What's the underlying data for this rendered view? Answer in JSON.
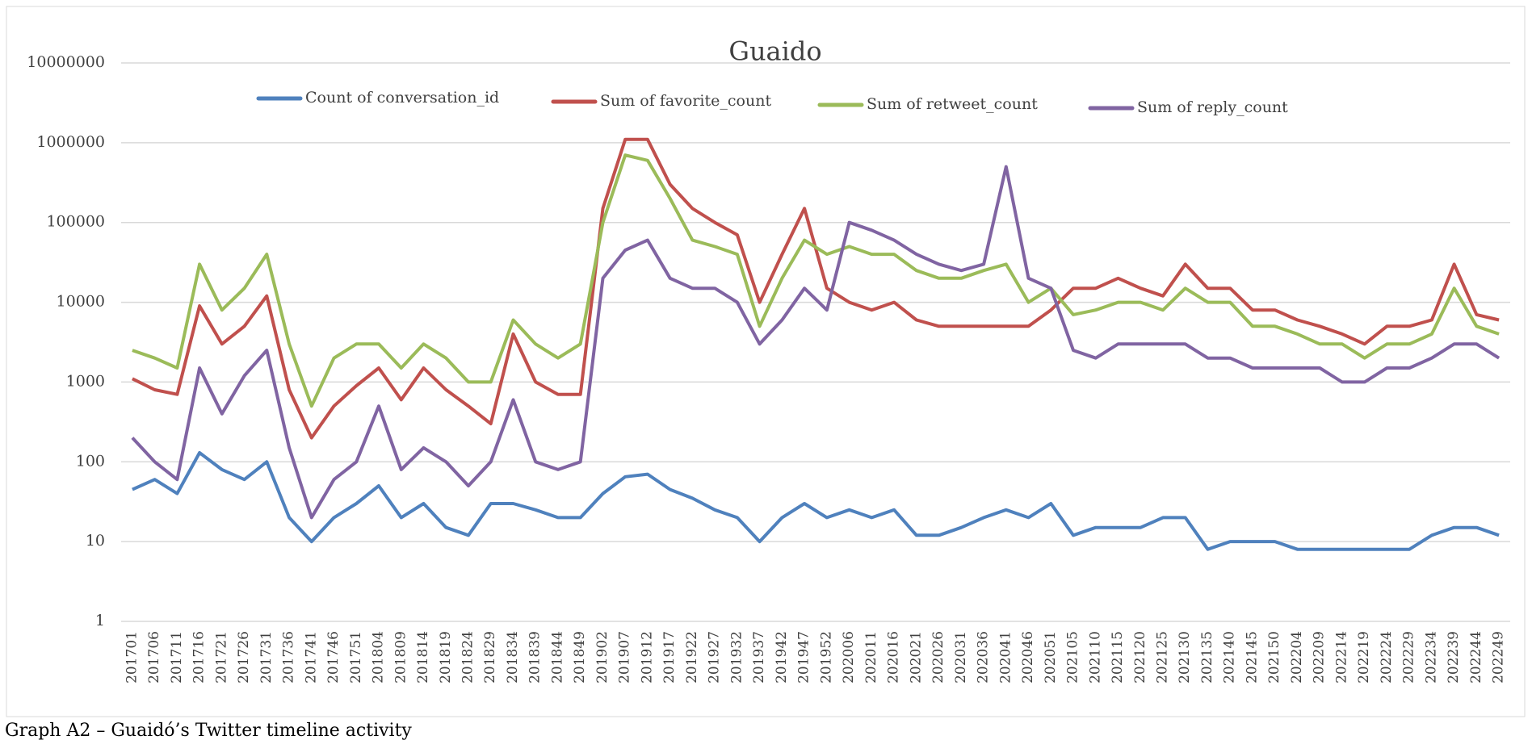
{
  "chart_data": {
    "type": "line",
    "title": "Guaido",
    "caption": "Graph A2 – Guaidó’s Twitter timeline activity",
    "log_scale": true,
    "grid": true,
    "legend": "top",
    "categories": [
      "201701",
      "201706",
      "201711",
      "201716",
      "201721",
      "201726",
      "201731",
      "201736",
      "201741",
      "201746",
      "201751",
      "201804",
      "201809",
      "201814",
      "201819",
      "201824",
      "201829",
      "201834",
      "201839",
      "201844",
      "201849",
      "201902",
      "201907",
      "201912",
      "201917",
      "201922",
      "201927",
      "201932",
      "201937",
      "201942",
      "201947",
      "201952",
      "202006",
      "202011",
      "202016",
      "202021",
      "202026",
      "202031",
      "202036",
      "202041",
      "202046",
      "202051",
      "202105",
      "202110",
      "202115",
      "202120",
      "202125",
      "202130",
      "202135",
      "202140",
      "202145",
      "202150",
      "202204",
      "202209",
      "202214",
      "202219",
      "202224",
      "202229",
      "202234",
      "202239",
      "202244",
      "202249"
    ],
    "ylim": [
      1,
      10000000
    ],
    "yticks": [
      1,
      10,
      100,
      1000,
      10000,
      100000,
      1000000,
      10000000
    ],
    "series": [
      {
        "name": "Count of conversation_id",
        "color": "#4f81bd",
        "values": [
          45,
          60,
          40,
          130,
          80,
          60,
          100,
          20,
          10,
          20,
          30,
          50,
          20,
          30,
          15,
          12,
          30,
          30,
          25,
          20,
          20,
          40,
          65,
          70,
          45,
          35,
          25,
          20,
          10,
          20,
          30,
          20,
          25,
          20,
          25,
          12,
          12,
          15,
          20,
          25,
          20,
          30,
          12,
          15,
          15,
          15,
          20,
          20,
          8,
          10,
          10,
          10,
          8,
          8,
          8,
          8,
          8,
          8,
          12,
          15,
          15,
          12
        ]
      },
      {
        "name": "Sum of favorite_count",
        "color": "#c0504d",
        "values": [
          1100,
          800,
          700,
          9000,
          3000,
          5000,
          12000,
          800,
          200,
          500,
          900,
          1500,
          600,
          1500,
          800,
          500,
          300,
          4000,
          1000,
          700,
          700,
          150000,
          1100000,
          1100000,
          300000,
          150000,
          100000,
          70000,
          10000,
          40000,
          150000,
          15000,
          10000,
          8000,
          10000,
          6000,
          5000,
          5000,
          5000,
          5000,
          5000,
          8000,
          15000,
          15000,
          20000,
          15000,
          12000,
          30000,
          15000,
          15000,
          8000,
          8000,
          6000,
          5000,
          4000,
          3000,
          5000,
          5000,
          6000,
          30000,
          7000,
          6000
        ]
      },
      {
        "name": "Sum of retweet_count",
        "color": "#9bbb59",
        "values": [
          2500,
          2000,
          1500,
          30000,
          8000,
          15000,
          40000,
          3000,
          500,
          2000,
          3000,
          3000,
          1500,
          3000,
          2000,
          1000,
          1000,
          6000,
          3000,
          2000,
          3000,
          100000,
          700000,
          600000,
          200000,
          60000,
          50000,
          40000,
          5000,
          20000,
          60000,
          40000,
          50000,
          40000,
          40000,
          25000,
          20000,
          20000,
          25000,
          30000,
          10000,
          15000,
          7000,
          8000,
          10000,
          10000,
          8000,
          15000,
          10000,
          10000,
          5000,
          5000,
          4000,
          3000,
          3000,
          2000,
          3000,
          3000,
          4000,
          15000,
          5000,
          4000
        ]
      },
      {
        "name": "Sum of reply_count",
        "color": "#8064a2",
        "values": [
          200,
          100,
          60,
          1500,
          400,
          1200,
          2500,
          150,
          20,
          60,
          100,
          500,
          80,
          150,
          100,
          50,
          100,
          600,
          100,
          80,
          100,
          20000,
          45000,
          60000,
          20000,
          15000,
          15000,
          10000,
          3000,
          6000,
          15000,
          8000,
          100000,
          80000,
          60000,
          40000,
          30000,
          25000,
          30000,
          500000,
          20000,
          15000,
          2500,
          2000,
          3000,
          3000,
          3000,
          3000,
          2000,
          2000,
          1500,
          1500,
          1500,
          1500,
          1000,
          1000,
          1500,
          1500,
          2000,
          3000,
          3000,
          2000
        ]
      }
    ]
  }
}
